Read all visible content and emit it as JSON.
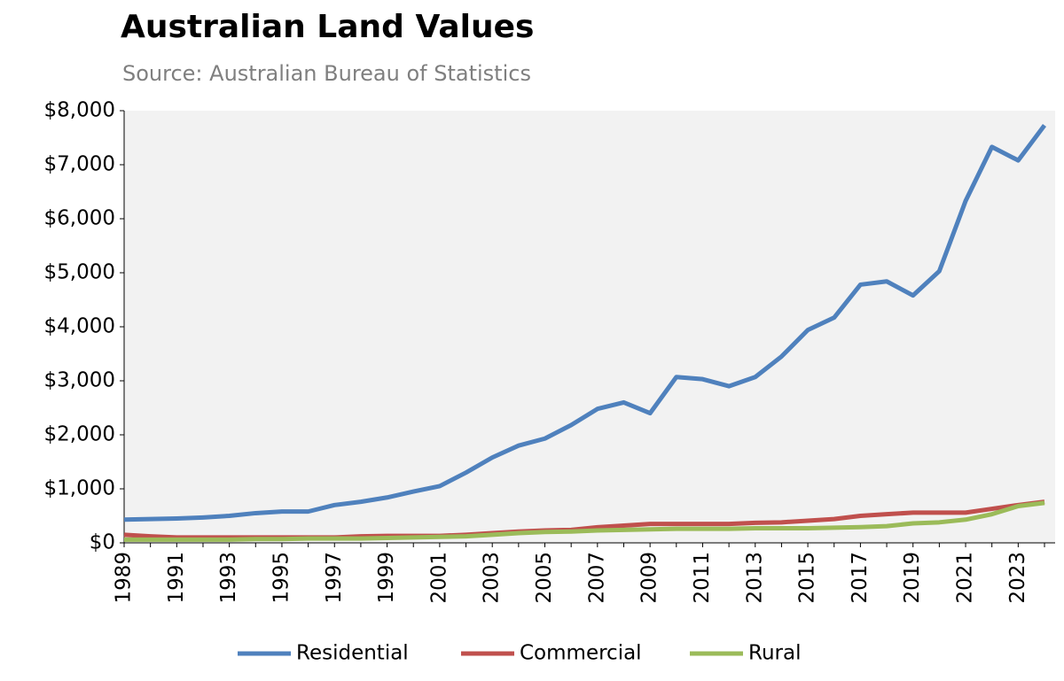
{
  "chart_data": {
    "type": "line",
    "title": "Australian Land Values",
    "subtitle": "Source: Australian Bureau of Statistics",
    "categories": [
      "1989",
      null,
      "1991",
      null,
      "1993",
      null,
      "1995",
      null,
      "1997",
      null,
      "1999",
      null,
      "2001",
      null,
      "2003",
      null,
      "2005",
      null,
      "2007",
      null,
      "2009",
      null,
      "2011",
      null,
      "2013",
      null,
      "2015",
      null,
      "2017",
      null,
      "2019",
      null,
      "2021",
      null,
      "2023",
      null
    ],
    "series": [
      {
        "name": "Residential",
        "color": "#4f81bd",
        "values": [
          430,
          440,
          450,
          470,
          500,
          550,
          580,
          580,
          700,
          760,
          840,
          950,
          1050,
          1300,
          1580,
          1800,
          1930,
          2180,
          2480,
          2600,
          2400,
          3070,
          3030,
          2900,
          3070,
          3450,
          3940,
          4170,
          4780,
          4840,
          4580,
          5030,
          6330,
          7330,
          7080,
          7730
        ]
      },
      {
        "name": "Commercial",
        "color": "#c0504d",
        "values": [
          150,
          120,
          100,
          100,
          100,
          100,
          100,
          100,
          100,
          120,
          130,
          130,
          130,
          150,
          180,
          210,
          230,
          240,
          290,
          320,
          350,
          350,
          350,
          350,
          370,
          380,
          410,
          440,
          500,
          530,
          560,
          560,
          560,
          630,
          700,
          760
        ]
      },
      {
        "name": "Rural",
        "color": "#9bbb59",
        "values": [
          60,
          60,
          60,
          60,
          60,
          70,
          70,
          80,
          80,
          80,
          90,
          100,
          110,
          120,
          150,
          180,
          200,
          210,
          230,
          240,
          250,
          260,
          260,
          260,
          270,
          270,
          270,
          280,
          290,
          310,
          360,
          380,
          430,
          530,
          680,
          740
        ]
      }
    ],
    "ylim": [
      0,
      8000
    ],
    "yticks": [
      {
        "value": 0,
        "label": "$0"
      },
      {
        "value": 1000,
        "label": "$1,000"
      },
      {
        "value": 2000,
        "label": "$2,000"
      },
      {
        "value": 3000,
        "label": "$3,000"
      },
      {
        "value": 4000,
        "label": "$4,000"
      },
      {
        "value": 5000,
        "label": "$5,000"
      },
      {
        "value": 6000,
        "label": "$6,000"
      },
      {
        "value": 7000,
        "label": "$7,000"
      },
      {
        "value": 8000,
        "label": "$8,000"
      }
    ],
    "legend": "bottom"
  }
}
